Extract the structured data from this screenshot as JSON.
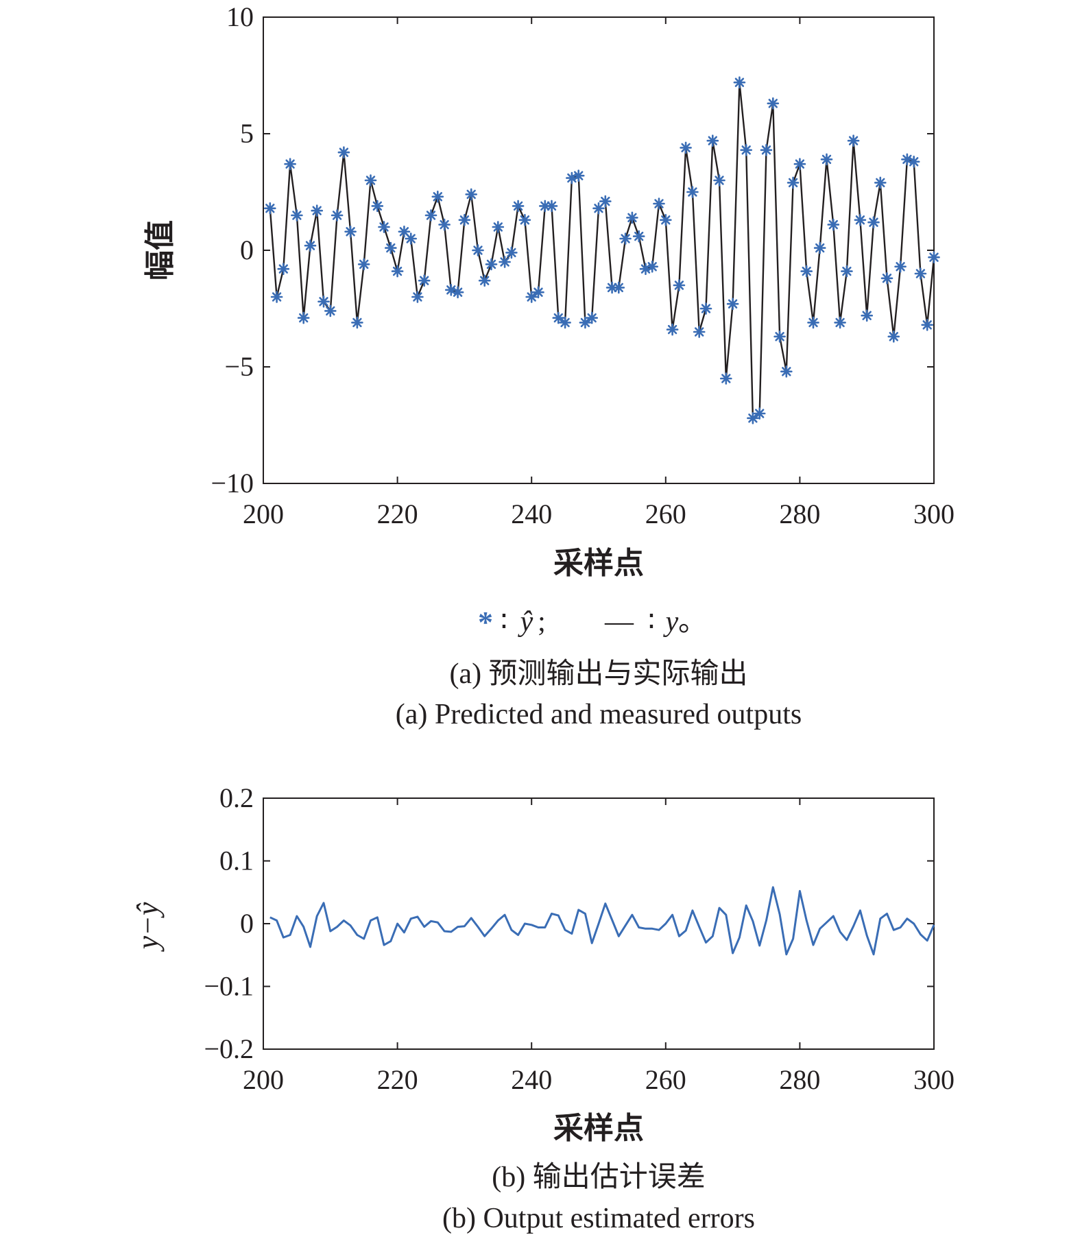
{
  "colors": {
    "predicted": "#3a6db5",
    "measured": "#231f20",
    "error": "#3a6db5",
    "axis": "#231f20"
  },
  "chart_data": [
    {
      "type": "line",
      "xlabel": "采样点",
      "ylabel": "幅值",
      "xlim": [
        200,
        300
      ],
      "ylim": [
        -10,
        10
      ],
      "xticks": [
        200,
        220,
        240,
        260,
        280,
        300
      ],
      "yticks": [
        -10,
        -5,
        0,
        5,
        10
      ],
      "xtick_labels": [
        "200",
        "220",
        "240",
        "260",
        "280",
        "300"
      ],
      "ytick_labels": [
        "−10",
        "−5",
        "0",
        "5",
        "10"
      ],
      "legend": {
        "predicted_symbol": "*",
        "predicted_label": "ŷ",
        "predicted_sep": ";",
        "measured_symbol": "—",
        "measured_label": "y",
        "measured_end": "。",
        "colon": "∶"
      },
      "caption_cn": "(a) 预测输出与实际输出",
      "caption_en": "(a) Predicted and measured outputs",
      "x": [
        201,
        202,
        203,
        204,
        205,
        206,
        207,
        208,
        209,
        210,
        211,
        212,
        213,
        214,
        215,
        216,
        217,
        218,
        219,
        220,
        221,
        222,
        223,
        224,
        225,
        226,
        227,
        228,
        229,
        230,
        231,
        232,
        233,
        234,
        235,
        236,
        237,
        238,
        239,
        240,
        241,
        242,
        243,
        244,
        245,
        246,
        247,
        248,
        249,
        250,
        251,
        252,
        253,
        254,
        255,
        256,
        257,
        258,
        259,
        260,
        261,
        262,
        263,
        264,
        265,
        266,
        267,
        268,
        269,
        270,
        271,
        272,
        273,
        274,
        275,
        276,
        277,
        278,
        279,
        280,
        281,
        282,
        283,
        284,
        285,
        286,
        287,
        288,
        289,
        290,
        291,
        292,
        293,
        294,
        295,
        296,
        297,
        298,
        299,
        300
      ],
      "series": [
        {
          "name": "ŷ",
          "style": "markers",
          "values": [
            1.8,
            -2.0,
            -0.8,
            3.7,
            1.5,
            -2.9,
            0.2,
            1.7,
            -2.2,
            -2.6,
            1.5,
            4.2,
            0.8,
            -3.1,
            -0.6,
            3.0,
            1.9,
            1.0,
            0.1,
            -0.9,
            0.8,
            0.5,
            -2.0,
            -1.3,
            1.5,
            2.3,
            1.1,
            -1.7,
            -1.8,
            1.3,
            2.4,
            0.0,
            -1.3,
            -0.6,
            1.0,
            -0.5,
            -0.1,
            1.9,
            1.3,
            -2.0,
            -1.8,
            1.9,
            1.9,
            -2.9,
            -3.1,
            3.1,
            3.2,
            -3.1,
            -2.9,
            1.8,
            2.1,
            -1.6,
            -1.6,
            0.5,
            1.4,
            0.6,
            -0.8,
            -0.7,
            2.0,
            1.3,
            -3.4,
            -1.5,
            4.4,
            2.5,
            -3.5,
            -2.5,
            4.7,
            3.0,
            -5.5,
            -2.3,
            7.2,
            4.3,
            -7.2,
            -7.0,
            4.3,
            6.3,
            -3.7,
            -5.2,
            2.9,
            3.7,
            -0.9,
            -3.1,
            0.1,
            3.9,
            1.1,
            -3.1,
            -0.9,
            4.7,
            1.3,
            -2.8,
            1.2,
            2.9,
            -1.2,
            -3.7,
            -0.7,
            3.9,
            3.8,
            -1.0,
            -3.2,
            -0.3
          ]
        },
        {
          "name": "y",
          "style": "line",
          "values": [
            1.8,
            -2.0,
            -0.8,
            3.7,
            1.5,
            -2.9,
            0.2,
            1.7,
            -2.2,
            -2.6,
            1.5,
            4.2,
            0.8,
            -3.1,
            -0.6,
            3.0,
            1.9,
            1.0,
            0.1,
            -0.9,
            0.8,
            0.5,
            -2.0,
            -1.3,
            1.5,
            2.3,
            1.1,
            -1.7,
            -1.8,
            1.3,
            2.4,
            0.0,
            -1.3,
            -0.6,
            1.0,
            -0.5,
            -0.1,
            1.9,
            1.3,
            -2.0,
            -1.8,
            1.9,
            1.9,
            -2.9,
            -3.1,
            3.1,
            3.2,
            -3.1,
            -2.9,
            1.8,
            2.1,
            -1.6,
            -1.6,
            0.5,
            1.4,
            0.6,
            -0.8,
            -0.7,
            2.0,
            1.3,
            -3.4,
            -1.5,
            4.4,
            2.5,
            -3.5,
            -2.5,
            4.7,
            3.0,
            -5.5,
            -2.3,
            7.2,
            4.3,
            -7.2,
            -7.0,
            4.3,
            6.3,
            -3.7,
            -5.2,
            2.9,
            3.7,
            -0.9,
            -3.1,
            0.1,
            3.9,
            1.1,
            -3.1,
            -0.9,
            4.7,
            1.3,
            -2.8,
            1.2,
            2.9,
            -1.2,
            -3.7,
            -0.7,
            3.9,
            3.8,
            -1.0,
            -3.2,
            -0.3
          ]
        }
      ]
    },
    {
      "type": "line",
      "xlabel": "采样点",
      "ylabel": "y−ŷ",
      "xlim": [
        200,
        300
      ],
      "ylim": [
        -0.2,
        0.2
      ],
      "xticks": [
        200,
        220,
        240,
        260,
        280,
        300
      ],
      "yticks": [
        -0.2,
        -0.1,
        0,
        0.1,
        0.2
      ],
      "xtick_labels": [
        "200",
        "220",
        "240",
        "260",
        "280",
        "300"
      ],
      "ytick_labels": [
        "−0.2",
        "−0.1",
        "0",
        "0.1",
        "0.2"
      ],
      "caption_cn": "(b) 输出估计误差",
      "caption_en": "(b) Output estimated errors",
      "x": [
        201,
        202,
        203,
        204,
        205,
        206,
        207,
        208,
        209,
        210,
        211,
        212,
        213,
        214,
        215,
        216,
        217,
        218,
        219,
        220,
        221,
        222,
        223,
        224,
        225,
        226,
        227,
        228,
        229,
        230,
        231,
        232,
        233,
        234,
        235,
        236,
        237,
        238,
        239,
        240,
        241,
        242,
        243,
        244,
        245,
        246,
        247,
        248,
        249,
        250,
        251,
        252,
        253,
        254,
        255,
        256,
        257,
        258,
        259,
        260,
        261,
        262,
        263,
        264,
        265,
        266,
        267,
        268,
        269,
        270,
        271,
        272,
        273,
        274,
        275,
        276,
        277,
        278,
        279,
        280,
        281,
        282,
        283,
        284,
        285,
        286,
        287,
        288,
        289,
        290,
        291,
        292,
        293,
        294,
        295,
        296,
        297,
        298,
        299,
        300
      ],
      "series": [
        {
          "name": "y−ŷ",
          "values": [
            0.01,
            0.005,
            -0.022,
            -0.018,
            0.012,
            -0.005,
            -0.037,
            0.012,
            0.033,
            -0.012,
            -0.005,
            0.005,
            -0.003,
            -0.018,
            -0.024,
            0.005,
            0.01,
            -0.034,
            -0.028,
            0.0,
            -0.014,
            0.008,
            0.011,
            -0.005,
            0.004,
            0.002,
            -0.012,
            -0.013,
            -0.005,
            -0.004,
            0.009,
            -0.005,
            -0.02,
            -0.008,
            0.005,
            0.014,
            -0.01,
            -0.018,
            0.0,
            -0.002,
            -0.006,
            -0.006,
            0.016,
            0.013,
            -0.01,
            -0.016,
            0.022,
            0.016,
            -0.031,
            0.0,
            0.032,
            0.006,
            -0.02,
            -0.003,
            0.014,
            -0.006,
            -0.008,
            -0.008,
            -0.01,
            0.0,
            0.014,
            -0.02,
            -0.011,
            0.021,
            -0.005,
            -0.03,
            -0.02,
            0.025,
            0.014,
            -0.047,
            -0.022,
            0.029,
            0.004,
            -0.035,
            0.005,
            0.058,
            0.015,
            -0.049,
            -0.024,
            0.052,
            0.005,
            -0.034,
            -0.008,
            0.002,
            0.012,
            -0.013,
            -0.026,
            -0.004,
            0.021,
            -0.019,
            -0.049,
            0.008,
            0.016,
            -0.01,
            -0.006,
            0.008,
            0.0,
            -0.017,
            -0.027,
            -0.002
          ]
        }
      ]
    }
  ]
}
